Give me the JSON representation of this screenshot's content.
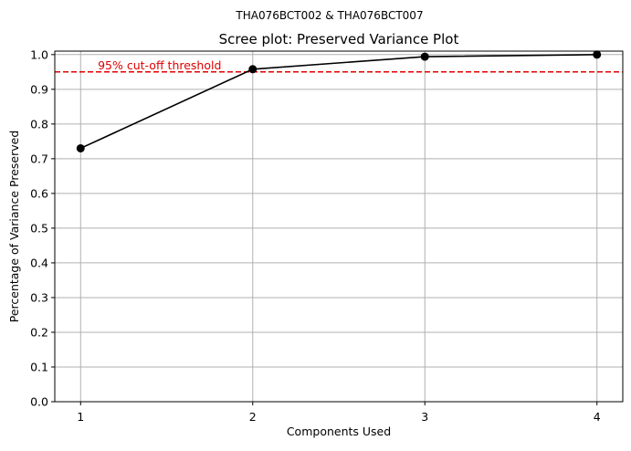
{
  "chart_data": {
    "type": "line",
    "subtitle": "THA076BCT002 & THA076BCT007",
    "title": "Scree plot: Preserved Variance Plot",
    "xlabel": "Components Used",
    "ylabel": "Percentage of Variance Preserved",
    "x": [
      1,
      2,
      3,
      4
    ],
    "x_ticks": [
      "1",
      "2",
      "3",
      "4"
    ],
    "xlim": [
      0.85,
      4.15
    ],
    "ylim": [
      0.0,
      1.01
    ],
    "y_ticks": [
      "0.0",
      "0.1",
      "0.2",
      "0.3",
      "0.4",
      "0.5",
      "0.6",
      "0.7",
      "0.8",
      "0.9",
      "1.0"
    ],
    "series": [
      {
        "values": [
          0.73,
          0.958,
          0.994,
          1.0
        ],
        "color": "#000000",
        "marker": "circle"
      }
    ],
    "threshold": {
      "value": 0.95,
      "label": "95% cut-off threshold",
      "color": "#e00000",
      "style": "dashed"
    },
    "grid": true
  }
}
